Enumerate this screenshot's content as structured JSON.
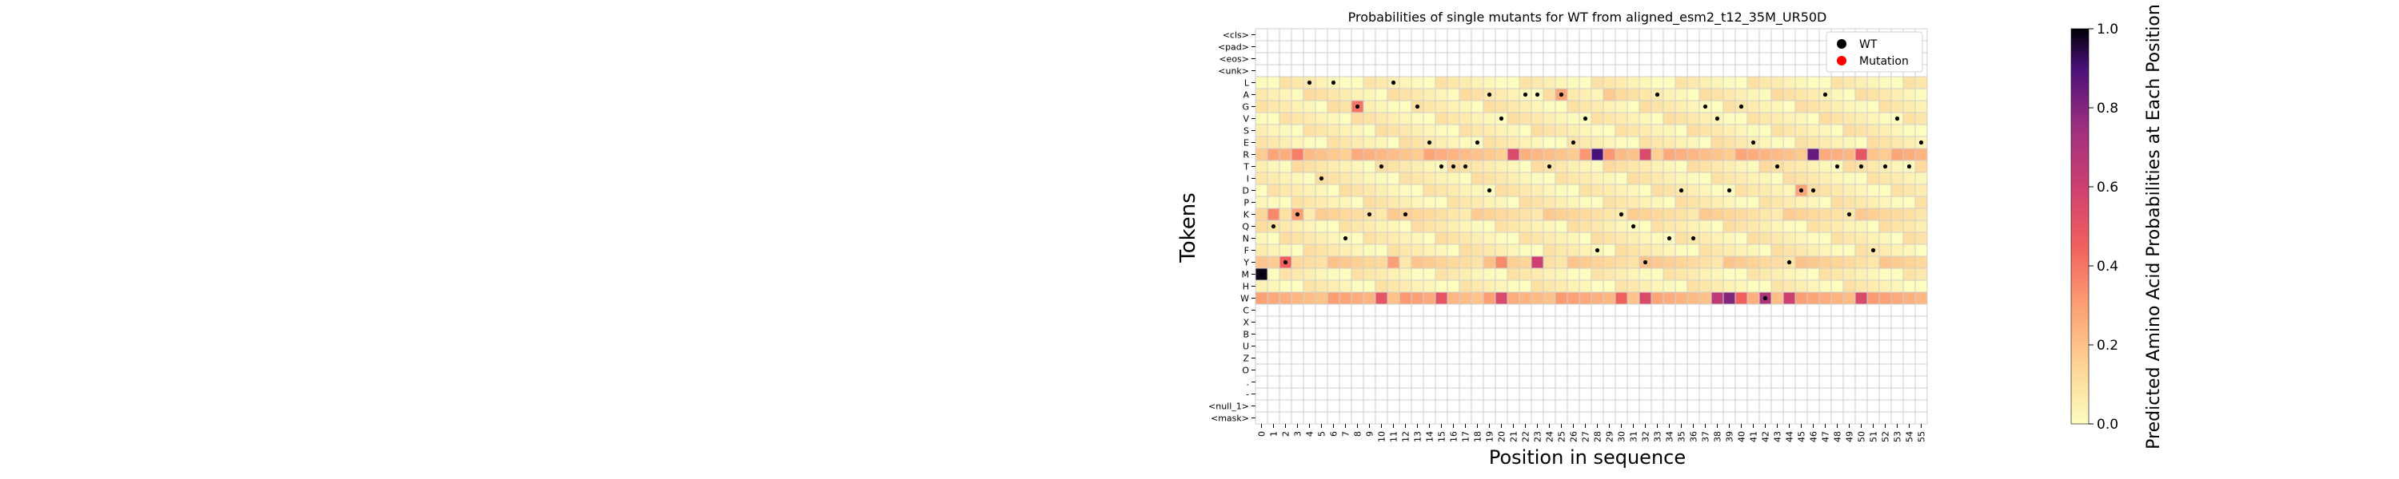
{
  "chart_data": {
    "type": "heatmap",
    "title": "Probabilities of single mutants for WT from aligned_esm2_t12_35M_UR50D",
    "xlabel": "Position in sequence",
    "ylabel": "Tokens",
    "colorbar_label": "Predicted Amino Acid Probabilities at Each Position",
    "colorbar_ticks": [
      "0.0",
      "0.2",
      "0.4",
      "0.6",
      "0.8",
      "1.0"
    ],
    "vmin": 0.0,
    "vmax": 1.0,
    "colormap": "magma_r",
    "legend": {
      "placement": "top-right",
      "items": [
        {
          "label": "WT",
          "color": "#000000"
        },
        {
          "label": "Mutation",
          "color": "#ff0000"
        }
      ]
    },
    "x_ticks": [
      "0",
      "1",
      "2",
      "3",
      "4",
      "5",
      "6",
      "7",
      "8",
      "9",
      "10",
      "11",
      "12",
      "13",
      "14",
      "15",
      "16",
      "17",
      "18",
      "19",
      "20",
      "21",
      "22",
      "23",
      "24",
      "25",
      "26",
      "27",
      "28",
      "29",
      "30",
      "31",
      "32",
      "33",
      "34",
      "35",
      "36",
      "37",
      "38",
      "39",
      "40",
      "41",
      "42",
      "43",
      "44",
      "45",
      "46",
      "47",
      "48",
      "49",
      "50",
      "51",
      "52",
      "53",
      "54",
      "55"
    ],
    "y_ticks": [
      "<cls>",
      "<pad>",
      "<eos>",
      "<unk>",
      "L",
      "A",
      "G",
      "V",
      "S",
      "E",
      "R",
      "T",
      "I",
      "D",
      "P",
      "K",
      "Q",
      "N",
      "F",
      "Y",
      "M",
      "H",
      "W",
      "C",
      "X",
      "B",
      "U",
      "Z",
      "O",
      ".",
      "-",
      "<null_1>",
      "<mask>"
    ],
    "base_probabilities": {
      "L": 0.04,
      "A": 0.06,
      "G": 0.05,
      "V": 0.05,
      "S": 0.05,
      "E": 0.05,
      "R": 0.22,
      "T": 0.06,
      "I": 0.05,
      "D": 0.05,
      "P": 0.05,
      "K": 0.12,
      "Q": 0.05,
      "N": 0.05,
      "F": 0.05,
      "Y": 0.14,
      "M": 0.04,
      "H": 0.04,
      "W": 0.25
    },
    "notable_cells": [
      {
        "token": "M",
        "position": 0,
        "value": 0.98
      },
      {
        "token": "G",
        "position": 8,
        "value": 0.4
      },
      {
        "token": "A",
        "position": 25,
        "value": 0.28
      },
      {
        "token": "A",
        "position": 29,
        "value": 0.18
      },
      {
        "token": "R",
        "position": 28,
        "value": 0.9
      },
      {
        "token": "R",
        "position": 46,
        "value": 0.85
      },
      {
        "token": "R",
        "position": 21,
        "value": 0.55
      },
      {
        "token": "R",
        "position": 32,
        "value": 0.55
      },
      {
        "token": "R",
        "position": 50,
        "value": 0.5
      },
      {
        "token": "R",
        "position": 27,
        "value": 0.32
      },
      {
        "token": "R",
        "position": 29,
        "value": 0.32
      },
      {
        "token": "R",
        "position": 3,
        "value": 0.38
      },
      {
        "token": "Y",
        "position": 2,
        "value": 0.45
      },
      {
        "token": "Y",
        "position": 23,
        "value": 0.6
      },
      {
        "token": "Y",
        "position": 11,
        "value": 0.3
      },
      {
        "token": "Y",
        "position": 20,
        "value": 0.35
      },
      {
        "token": "K",
        "position": 1,
        "value": 0.35
      },
      {
        "token": "K",
        "position": 3,
        "value": 0.3
      },
      {
        "token": "W",
        "position": 39,
        "value": 0.8
      },
      {
        "token": "W",
        "position": 38,
        "value": 0.65
      },
      {
        "token": "W",
        "position": 42,
        "value": 0.7
      },
      {
        "token": "W",
        "position": 44,
        "value": 0.6
      },
      {
        "token": "W",
        "position": 32,
        "value": 0.55
      },
      {
        "token": "W",
        "position": 20,
        "value": 0.55
      },
      {
        "token": "W",
        "position": 10,
        "value": 0.5
      },
      {
        "token": "W",
        "position": 15,
        "value": 0.5
      },
      {
        "token": "W",
        "position": 50,
        "value": 0.55
      },
      {
        "token": "W",
        "position": 30,
        "value": 0.45
      },
      {
        "token": "W",
        "position": 40,
        "value": 0.45
      },
      {
        "token": "D",
        "position": 45,
        "value": 0.28
      },
      {
        "token": "E",
        "position": 25,
        "value": 0.0
      }
    ],
    "wt_markers": [
      {
        "token": "M",
        "position": 0
      },
      {
        "token": "Q",
        "position": 1
      },
      {
        "token": "Y",
        "position": 2
      },
      {
        "token": "K",
        "position": 3
      },
      {
        "token": "L",
        "position": 4
      },
      {
        "token": "I",
        "position": 5
      },
      {
        "token": "L",
        "position": 6
      },
      {
        "token": "N",
        "position": 7
      },
      {
        "token": "G",
        "position": 8
      },
      {
        "token": "K",
        "position": 9
      },
      {
        "token": "T",
        "position": 10
      },
      {
        "token": "L",
        "position": 11
      },
      {
        "token": "K",
        "position": 12
      },
      {
        "token": "G",
        "position": 13
      },
      {
        "token": "E",
        "position": 14
      },
      {
        "token": "T",
        "position": 15
      },
      {
        "token": "T",
        "position": 16
      },
      {
        "token": "T",
        "position": 17
      },
      {
        "token": "E",
        "position": 18
      },
      {
        "token": "D",
        "position": 19
      },
      {
        "token": "V",
        "position": 20
      },
      {
        "token": "A",
        "position": 19
      },
      {
        "token": "A",
        "position": 22
      },
      {
        "token": "A",
        "position": 23
      },
      {
        "token": "T",
        "position": 24
      },
      {
        "token": "A",
        "position": 25
      },
      {
        "token": "E",
        "position": 26
      },
      {
        "token": "V",
        "position": 27
      },
      {
        "token": "F",
        "position": 28
      },
      {
        "token": "K",
        "position": 30
      },
      {
        "token": "Q",
        "position": 31
      },
      {
        "token": "Y",
        "position": 32
      },
      {
        "token": "A",
        "position": 33
      },
      {
        "token": "N",
        "position": 34
      },
      {
        "token": "D",
        "position": 35
      },
      {
        "token": "N",
        "position": 36
      },
      {
        "token": "G",
        "position": 37
      },
      {
        "token": "V",
        "position": 38
      },
      {
        "token": "D",
        "position": 39
      },
      {
        "token": "G",
        "position": 40
      },
      {
        "token": "E",
        "position": 41
      },
      {
        "token": "W",
        "position": 42
      },
      {
        "token": "T",
        "position": 43
      },
      {
        "token": "Y",
        "position": 44
      },
      {
        "token": "D",
        "position": 45
      },
      {
        "token": "D",
        "position": 46
      },
      {
        "token": "A",
        "position": 47
      },
      {
        "token": "T",
        "position": 48
      },
      {
        "token": "K",
        "position": 49
      },
      {
        "token": "T",
        "position": 50
      },
      {
        "token": "F",
        "position": 51
      },
      {
        "token": "T",
        "position": 52
      },
      {
        "token": "V",
        "position": 53
      },
      {
        "token": "T",
        "position": 54
      },
      {
        "token": "E",
        "position": 55
      }
    ],
    "mutation_markers": []
  }
}
